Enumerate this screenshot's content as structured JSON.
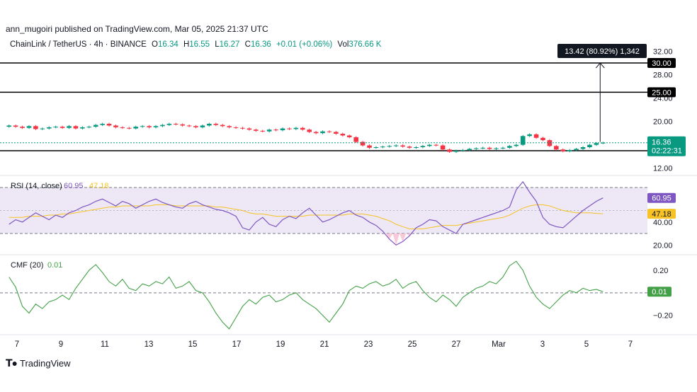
{
  "header": {
    "published": "ann_mugoiri published on TradingView.com, Mar 05, 2025 21:37 UTC"
  },
  "symbol": {
    "name": "ChainLink / TetherUS · 4h · BINANCE",
    "o_label": "O",
    "o_value": "16.34",
    "h_label": "H",
    "h_value": "16.55",
    "l_label": "L",
    "l_value": "16.27",
    "c_label": "C",
    "c_value": "16.36",
    "change": "+0.01 (+0.06%)",
    "vol_label": "Vol",
    "vol_value": "376.66 K"
  },
  "colors": {
    "up": "#089981",
    "down": "#f23645",
    "rsi_line": "#7e57c2",
    "rsi_ma": "#f7c324",
    "rsi_band_fill": "#ede7f6",
    "cmf_line": "#43a047",
    "level_line": "#000000"
  },
  "measure_label": "13.42 (80.92%) 1,342",
  "price_axis": {
    "ticks": [
      "32.00",
      "28.00",
      "24.00",
      "20.00",
      "12.00"
    ],
    "tick_values": [
      32,
      28,
      24,
      20,
      12
    ],
    "levels": [
      {
        "value": 30,
        "label": "30.00"
      },
      {
        "value": 25,
        "label": "25.00"
      },
      {
        "value": 15,
        "label": "15.00"
      }
    ],
    "last_price": "16.36",
    "countdown": "02:22:31"
  },
  "rsi": {
    "title": "RSI (14, close)",
    "value": "60.95",
    "ma_value": "47.18",
    "ticks": [
      "40.00",
      "20.00"
    ],
    "tick_values": [
      40,
      20
    ],
    "upper_band": 70,
    "lower_band": 30,
    "middle": 50
  },
  "cmf": {
    "title": "CMF (20)",
    "value": "0.01",
    "ticks": [
      "0.20",
      "−0.20"
    ],
    "tick_values": [
      0.2,
      -0.2
    ]
  },
  "x_axis": {
    "labels": [
      "7",
      "9",
      "11",
      "13",
      "15",
      "17",
      "19",
      "21",
      "23",
      "25",
      "27",
      "Mar",
      "3",
      "5",
      "7"
    ]
  },
  "chart_data": {
    "type": "line",
    "price": {
      "ylim": [
        11,
        34
      ],
      "candles_close": [
        19.3,
        19.1,
        18.9,
        19.2,
        18.7,
        18.8,
        19.0,
        19.1,
        18.9,
        19.2,
        18.8,
        19.0,
        19.1,
        19.4,
        19.6,
        19.3,
        19.0,
        18.9,
        18.8,
        19.1,
        19.2,
        19.0,
        19.2,
        19.4,
        19.6,
        19.5,
        19.3,
        19.2,
        19.0,
        19.3,
        19.6,
        19.4,
        19.2,
        19.0,
        18.9,
        18.8,
        18.6,
        18.4,
        18.3,
        18.6,
        18.5,
        18.8,
        18.7,
        18.9,
        18.6,
        18.2,
        18.0,
        18.3,
        18.2,
        17.9,
        17.6,
        17.3,
        16.5,
        15.9,
        15.5,
        15.6,
        15.7,
        15.8,
        15.9,
        15.7,
        15.5,
        15.6,
        15.8,
        16.0,
        15.9,
        15.2,
        14.8,
        15.0,
        15.1,
        15.3,
        15.4,
        15.5,
        15.3,
        15.4,
        15.5,
        15.8,
        16.0,
        17.5,
        17.8,
        17.2,
        16.8,
        15.8,
        15.2,
        14.9,
        15.1,
        15.3,
        15.6,
        16.0,
        16.3,
        16.36
      ],
      "levels": [
        30,
        25,
        15
      ],
      "last": 16.36
    },
    "rsi": {
      "ylim": [
        14,
        78
      ],
      "values": [
        38,
        42,
        40,
        44,
        48,
        45,
        42,
        46,
        44,
        48,
        50,
        53,
        55,
        58,
        60,
        57,
        54,
        58,
        56,
        52,
        55,
        58,
        60,
        57,
        55,
        53,
        52,
        56,
        58,
        55,
        53,
        51,
        50,
        48,
        45,
        35,
        33,
        40,
        44,
        38,
        36,
        42,
        45,
        43,
        48,
        52,
        46,
        40,
        42,
        45,
        48,
        50,
        46,
        44,
        40,
        37,
        32,
        25,
        20,
        23,
        28,
        35,
        38,
        42,
        41,
        36,
        33,
        30,
        38,
        40,
        42,
        44,
        46,
        48,
        50,
        53,
        68,
        75,
        66,
        58,
        44,
        38,
        36,
        35,
        40,
        45,
        50,
        54,
        58,
        60.95
      ],
      "ma": [
        44,
        44,
        44,
        45,
        45,
        45,
        46,
        46,
        47,
        47,
        48,
        49,
        50,
        51,
        52,
        53,
        53,
        54,
        54,
        54,
        54,
        54,
        55,
        55,
        55,
        54,
        54,
        54,
        54,
        54,
        54,
        53,
        53,
        52,
        51,
        50,
        48,
        47,
        47,
        46,
        45,
        45,
        45,
        45,
        45,
        46,
        46,
        46,
        46,
        46,
        46,
        47,
        47,
        47,
        46,
        45,
        43,
        41,
        38,
        36,
        34,
        34,
        34,
        35,
        36,
        37,
        37,
        37,
        38,
        39,
        40,
        41,
        42,
        43,
        44,
        46,
        49,
        52,
        54,
        55,
        55,
        54,
        52,
        50,
        49,
        48,
        48,
        48,
        47.5,
        47.18
      ]
    },
    "cmf_data": {
      "ylim": [
        -0.34,
        0.3
      ],
      "values": [
        0.14,
        0.05,
        -0.12,
        -0.18,
        -0.1,
        -0.14,
        -0.08,
        -0.06,
        -0.02,
        -0.06,
        0.04,
        0.12,
        0.2,
        0.25,
        0.18,
        0.1,
        0.06,
        0.12,
        0.04,
        0.02,
        0.08,
        0.06,
        0.1,
        0.08,
        0.14,
        0.04,
        0.06,
        0.1,
        0.02,
        0.0,
        -0.08,
        -0.18,
        -0.26,
        -0.32,
        -0.22,
        -0.12,
        -0.06,
        -0.1,
        -0.04,
        -0.02,
        -0.08,
        -0.06,
        -0.02,
        0.0,
        -0.06,
        -0.1,
        -0.14,
        -0.2,
        -0.26,
        -0.18,
        -0.1,
        0.02,
        0.06,
        0.04,
        0.08,
        0.1,
        0.06,
        0.08,
        0.12,
        0.04,
        0.08,
        0.1,
        0.02,
        -0.04,
        -0.08,
        -0.02,
        -0.06,
        -0.12,
        -0.04,
        0.0,
        0.04,
        0.06,
        0.1,
        0.08,
        0.14,
        0.24,
        0.28,
        0.2,
        0.06,
        -0.04,
        -0.1,
        -0.14,
        -0.08,
        -0.02,
        0.02,
        0.0,
        0.04,
        0.02,
        0.03,
        0.01
      ]
    }
  }
}
